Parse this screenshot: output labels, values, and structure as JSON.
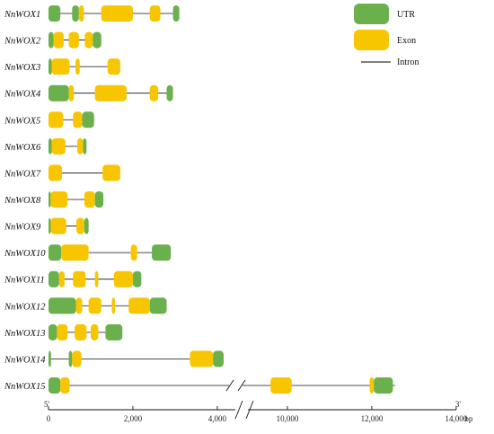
{
  "figure": "gene-structure",
  "legend": {
    "utr": {
      "label": "UTR",
      "color": "#6ab04c"
    },
    "exon": {
      "label": "Exon",
      "color": "#f7c600"
    },
    "intron": {
      "label": "Intron"
    }
  },
  "axis": {
    "start_label": "5'",
    "end_label": "3'",
    "unit": "bp",
    "left_ticks": [
      0,
      2000,
      4000
    ],
    "left_tick_labels": [
      "0",
      "2,000",
      "4,000"
    ],
    "right_ticks": [
      10000,
      12000,
      14000
    ],
    "right_tick_labels": [
      "10,000",
      "12,000",
      "14,000"
    ]
  },
  "genes": [
    {
      "name": "NnWOX1",
      "length": 3100,
      "features": [
        {
          "t": "utr",
          "s": 0,
          "e": 280
        },
        {
          "t": "utr",
          "s": 560,
          "e": 720
        },
        {
          "t": "exon",
          "s": 720,
          "e": 840
        },
        {
          "t": "exon",
          "s": 1250,
          "e": 2000
        },
        {
          "t": "exon",
          "s": 2400,
          "e": 2650
        },
        {
          "t": "utr",
          "s": 2950,
          "e": 3100
        }
      ]
    },
    {
      "name": "NnWOX2",
      "length": 1250,
      "features": [
        {
          "t": "utr",
          "s": 0,
          "e": 120
        },
        {
          "t": "exon",
          "s": 120,
          "e": 360
        },
        {
          "t": "exon",
          "s": 480,
          "e": 720
        },
        {
          "t": "exon",
          "s": 860,
          "e": 1050
        },
        {
          "t": "utr",
          "s": 1050,
          "e": 1250
        }
      ]
    },
    {
      "name": "NnWOX3",
      "length": 1700,
      "features": [
        {
          "t": "utr",
          "s": 0,
          "e": 80
        },
        {
          "t": "exon",
          "s": 80,
          "e": 500
        },
        {
          "t": "exon",
          "s": 640,
          "e": 740
        },
        {
          "t": "exon",
          "s": 1400,
          "e": 1700
        }
      ]
    },
    {
      "name": "NnWOX4",
      "length": 2950,
      "features": [
        {
          "t": "utr",
          "s": 0,
          "e": 480
        },
        {
          "t": "exon",
          "s": 480,
          "e": 600
        },
        {
          "t": "exon",
          "s": 1100,
          "e": 1850
        },
        {
          "t": "exon",
          "s": 2400,
          "e": 2600
        },
        {
          "t": "utr",
          "s": 2800,
          "e": 2950
        }
      ]
    },
    {
      "name": "NnWOX5",
      "length": 1080,
      "features": [
        {
          "t": "exon",
          "s": 0,
          "e": 350
        },
        {
          "t": "exon",
          "s": 580,
          "e": 800
        },
        {
          "t": "utr",
          "s": 800,
          "e": 1080
        }
      ]
    },
    {
      "name": "NnWOX6",
      "length": 900,
      "features": [
        {
          "t": "utr",
          "s": 0,
          "e": 80
        },
        {
          "t": "exon",
          "s": 80,
          "e": 400
        },
        {
          "t": "exon",
          "s": 680,
          "e": 820
        },
        {
          "t": "utr",
          "s": 820,
          "e": 900
        }
      ]
    },
    {
      "name": "NnWOX7",
      "length": 1700,
      "features": [
        {
          "t": "exon",
          "s": 0,
          "e": 320
        },
        {
          "t": "exon",
          "s": 1280,
          "e": 1700
        }
      ]
    },
    {
      "name": "NnWOX8",
      "length": 1300,
      "features": [
        {
          "t": "utr",
          "s": 0,
          "e": 50
        },
        {
          "t": "exon",
          "s": 50,
          "e": 450
        },
        {
          "t": "exon",
          "s": 850,
          "e": 1100
        },
        {
          "t": "utr",
          "s": 1100,
          "e": 1300
        }
      ]
    },
    {
      "name": "NnWOX9",
      "length": 950,
      "features": [
        {
          "t": "utr",
          "s": 0,
          "e": 50
        },
        {
          "t": "exon",
          "s": 50,
          "e": 420
        },
        {
          "t": "exon",
          "s": 660,
          "e": 850
        },
        {
          "t": "utr",
          "s": 850,
          "e": 950
        }
      ]
    },
    {
      "name": "NnWOX10",
      "length": 2900,
      "features": [
        {
          "t": "utr",
          "s": 0,
          "e": 300
        },
        {
          "t": "exon",
          "s": 300,
          "e": 950
        },
        {
          "t": "exon",
          "s": 1950,
          "e": 2100
        },
        {
          "t": "utr",
          "s": 2450,
          "e": 2900
        }
      ]
    },
    {
      "name": "NnWOX11",
      "length": 2200,
      "features": [
        {
          "t": "utr",
          "s": 0,
          "e": 250
        },
        {
          "t": "exon",
          "s": 250,
          "e": 380
        },
        {
          "t": "exon",
          "s": 580,
          "e": 880
        },
        {
          "t": "exon",
          "s": 1100,
          "e": 1180
        },
        {
          "t": "exon",
          "s": 1550,
          "e": 2000
        },
        {
          "t": "utr",
          "s": 2000,
          "e": 2200
        }
      ]
    },
    {
      "name": "NnWOX12",
      "length": 2800,
      "features": [
        {
          "t": "utr",
          "s": 0,
          "e": 650
        },
        {
          "t": "exon",
          "s": 650,
          "e": 800
        },
        {
          "t": "exon",
          "s": 950,
          "e": 1250
        },
        {
          "t": "exon",
          "s": 1500,
          "e": 1580
        },
        {
          "t": "exon",
          "s": 1900,
          "e": 2400
        },
        {
          "t": "utr",
          "s": 2400,
          "e": 2800
        }
      ]
    },
    {
      "name": "NnWOX13",
      "length": 1750,
      "features": [
        {
          "t": "utr",
          "s": 0,
          "e": 200
        },
        {
          "t": "exon",
          "s": 200,
          "e": 450
        },
        {
          "t": "exon",
          "s": 620,
          "e": 900
        },
        {
          "t": "exon",
          "s": 1000,
          "e": 1180
        },
        {
          "t": "utr",
          "s": 1350,
          "e": 1750
        }
      ]
    },
    {
      "name": "NnWOX14",
      "length": 4150,
      "features": [
        {
          "t": "utr",
          "s": 0,
          "e": 60
        },
        {
          "t": "utr",
          "s": 480,
          "e": 560
        },
        {
          "t": "exon",
          "s": 560,
          "e": 780
        },
        {
          "t": "exon",
          "s": 3350,
          "e": 3900
        },
        {
          "t": "utr",
          "s": 3900,
          "e": 4150
        }
      ]
    },
    {
      "name": "NnWOX15",
      "length": 12550,
      "features": [
        {
          "t": "utr",
          "s": 0,
          "e": 280
        },
        {
          "t": "exon",
          "s": 280,
          "e": 500
        },
        {
          "t": "exon",
          "s": 9600,
          "e": 10100
        },
        {
          "t": "exon",
          "s": 11950,
          "e": 12050
        },
        {
          "t": "utr",
          "s": 12050,
          "e": 12500
        }
      ]
    }
  ]
}
